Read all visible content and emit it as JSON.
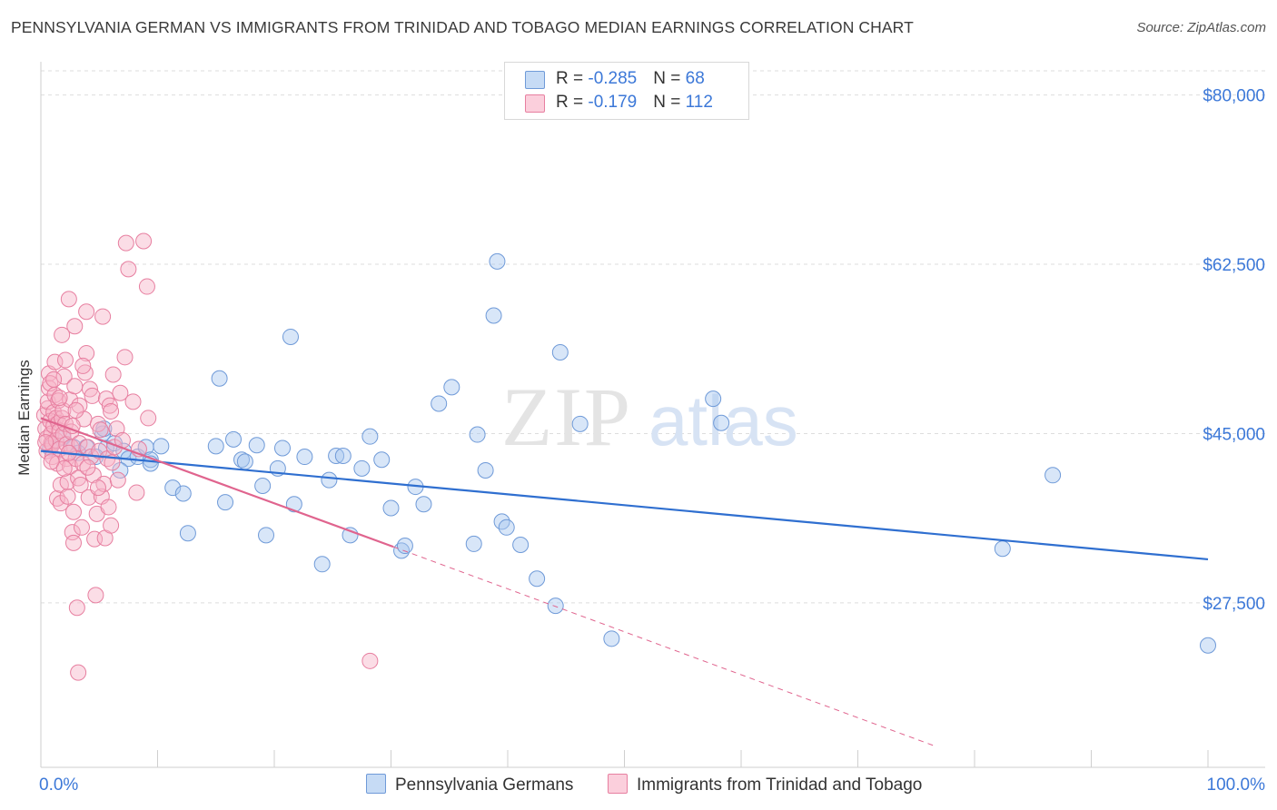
{
  "title": "PENNSYLVANIA GERMAN VS IMMIGRANTS FROM TRINIDAD AND TOBAGO MEDIAN EARNINGS CORRELATION CHART",
  "source": "Source: ZipAtlas.com",
  "watermark": {
    "zip": "ZIP",
    "atlas": "atlas"
  },
  "legend": {
    "rows": [
      {
        "r_label": "R = ",
        "r_value": "-0.285",
        "n_label": "N = ",
        "n_value": "68"
      },
      {
        "r_label": "R = ",
        "r_value": "-0.179",
        "n_label": "N = ",
        "n_value": "112"
      }
    ]
  },
  "colors": {
    "blue_fill": "#a9c8f0",
    "blue_stroke": "#6f9ad8",
    "blue_line": "#2f6fd0",
    "pink_fill": "#f6b4c8",
    "pink_stroke": "#e77fa0",
    "pink_line": "#e0648e",
    "axis_label": "#3c78d8",
    "grid": "#dddddd"
  },
  "chart_data": {
    "type": "scatter",
    "ylabel": "Median Earnings",
    "xlabel": "",
    "x_tick_labels": [
      "0.0%",
      "100.0%"
    ],
    "y_tick_labels": [
      "$80,000",
      "$62,500",
      "$45,000",
      "$27,500"
    ],
    "y_ticks": [
      80000,
      62500,
      45000,
      27500
    ],
    "xlim": [
      0,
      100
    ],
    "ylim": [
      10500,
      82500
    ],
    "grid": true,
    "legend_position": "top-center",
    "series": [
      {
        "name": "Pennsylvania Germans",
        "trend": {
          "x": [
            0,
            100
          ],
          "y": [
            43200,
            32000
          ],
          "solid_until": 100
        },
        "points": [
          [
            0.8,
            43.5
          ],
          [
            1.9,
            44.6
          ],
          [
            2.8,
            43.6
          ],
          [
            3.9,
            43.6
          ],
          [
            5.3,
            45.0
          ],
          [
            5.6,
            43.5
          ],
          [
            6.3,
            44.0
          ],
          [
            7.1,
            43.2
          ],
          [
            7.5,
            42.4
          ],
          [
            8.3,
            42.6
          ],
          [
            9.0,
            43.6
          ],
          [
            9.4,
            42.3
          ],
          [
            10.3,
            43.7
          ],
          [
            11.3,
            39.4
          ],
          [
            12.2,
            38.8
          ],
          [
            12.6,
            34.7
          ],
          [
            15.0,
            43.7
          ],
          [
            15.3,
            50.7
          ],
          [
            15.8,
            37.9
          ],
          [
            16.5,
            44.4
          ],
          [
            17.2,
            42.3
          ],
          [
            17.5,
            42.1
          ],
          [
            18.5,
            43.8
          ],
          [
            19.0,
            39.6
          ],
          [
            19.3,
            34.5
          ],
          [
            20.3,
            41.4
          ],
          [
            20.7,
            43.5
          ],
          [
            21.4,
            55.0
          ],
          [
            21.7,
            37.7
          ],
          [
            22.6,
            42.6
          ],
          [
            24.1,
            31.5
          ],
          [
            24.7,
            40.2
          ],
          [
            25.3,
            42.7
          ],
          [
            25.9,
            42.7
          ],
          [
            26.5,
            34.5
          ],
          [
            27.5,
            41.4
          ],
          [
            28.2,
            44.7
          ],
          [
            29.2,
            42.3
          ],
          [
            30.0,
            37.3
          ],
          [
            30.9,
            32.9
          ],
          [
            31.2,
            33.4
          ],
          [
            32.1,
            39.5
          ],
          [
            32.8,
            37.7
          ],
          [
            34.1,
            48.1
          ],
          [
            35.2,
            49.8
          ],
          [
            37.1,
            33.6
          ],
          [
            37.4,
            44.9
          ],
          [
            38.1,
            41.2
          ],
          [
            38.8,
            57.2
          ],
          [
            39.1,
            62.8
          ],
          [
            39.5,
            35.9
          ],
          [
            39.9,
            35.3
          ],
          [
            41.1,
            33.5
          ],
          [
            42.5,
            30.0
          ],
          [
            44.1,
            27.2
          ],
          [
            44.5,
            53.4
          ],
          [
            46.2,
            46.0
          ],
          [
            48.9,
            23.8
          ],
          [
            57.6,
            48.6
          ],
          [
            58.3,
            46.1
          ],
          [
            82.4,
            33.1
          ],
          [
            86.7,
            40.7
          ],
          [
            100.0,
            23.1
          ],
          [
            6.8,
            41.2
          ],
          [
            5.4,
            45.5
          ],
          [
            4.7,
            42.6
          ],
          [
            9.4,
            41.9
          ],
          [
            3.2,
            43.0
          ]
        ]
      },
      {
        "name": "Immigrants from Trinidad and Tobago",
        "trend": {
          "x": [
            0,
            30.2,
            76.6
          ],
          "y": [
            46600,
            33300,
            12700
          ],
          "solid_until": 30.2
        },
        "points": [
          [
            0.3,
            46.9
          ],
          [
            0.4,
            45.5
          ],
          [
            0.5,
            44.5
          ],
          [
            0.5,
            43.2
          ],
          [
            0.6,
            47.6
          ],
          [
            0.6,
            48.3
          ],
          [
            0.7,
            51.2
          ],
          [
            0.7,
            49.7
          ],
          [
            0.8,
            50.2
          ],
          [
            0.8,
            46.3
          ],
          [
            0.9,
            45.0
          ],
          [
            0.9,
            44.0
          ],
          [
            1.0,
            42.6
          ],
          [
            1.0,
            43.9
          ],
          [
            1.1,
            45.8
          ],
          [
            1.1,
            47.2
          ],
          [
            1.2,
            49.0
          ],
          [
            1.2,
            52.4
          ],
          [
            1.3,
            44.3
          ],
          [
            1.3,
            46.6
          ],
          [
            1.4,
            41.9
          ],
          [
            1.4,
            38.3
          ],
          [
            1.5,
            46.1
          ],
          [
            1.5,
            48.4
          ],
          [
            1.6,
            43.4
          ],
          [
            1.6,
            45.3
          ],
          [
            1.7,
            39.7
          ],
          [
            1.7,
            37.8
          ],
          [
            1.8,
            55.2
          ],
          [
            1.8,
            46.6
          ],
          [
            1.9,
            47.4
          ],
          [
            1.9,
            44.9
          ],
          [
            2.0,
            50.9
          ],
          [
            2.1,
            52.6
          ],
          [
            2.1,
            46.0
          ],
          [
            2.2,
            42.4
          ],
          [
            2.2,
            43.9
          ],
          [
            2.3,
            38.5
          ],
          [
            2.3,
            40.0
          ],
          [
            2.4,
            58.9
          ],
          [
            2.5,
            48.5
          ],
          [
            2.5,
            41.6
          ],
          [
            2.6,
            45.2
          ],
          [
            2.6,
            43.6
          ],
          [
            2.7,
            34.8
          ],
          [
            2.8,
            33.7
          ],
          [
            2.8,
            36.9
          ],
          [
            2.9,
            56.1
          ],
          [
            2.9,
            49.9
          ],
          [
            3.0,
            42.4
          ],
          [
            3.1,
            27.0
          ],
          [
            3.2,
            20.3
          ],
          [
            3.2,
            40.4
          ],
          [
            3.3,
            47.9
          ],
          [
            3.3,
            44.0
          ],
          [
            3.4,
            39.7
          ],
          [
            3.5,
            35.3
          ],
          [
            3.6,
            41.9
          ],
          [
            3.7,
            46.5
          ],
          [
            3.8,
            51.3
          ],
          [
            3.9,
            53.3
          ],
          [
            3.9,
            57.6
          ],
          [
            4.0,
            43.6
          ],
          [
            4.1,
            38.4
          ],
          [
            4.2,
            49.6
          ],
          [
            4.3,
            42.6
          ],
          [
            4.4,
            48.9
          ],
          [
            4.5,
            40.7
          ],
          [
            4.6,
            34.1
          ],
          [
            4.7,
            28.3
          ],
          [
            4.8,
            36.7
          ],
          [
            4.9,
            46.0
          ],
          [
            5.0,
            43.2
          ],
          [
            5.1,
            45.4
          ],
          [
            5.2,
            38.5
          ],
          [
            5.3,
            57.1
          ],
          [
            5.4,
            39.8
          ],
          [
            5.5,
            34.2
          ],
          [
            5.6,
            48.6
          ],
          [
            5.7,
            42.4
          ],
          [
            5.8,
            37.4
          ],
          [
            5.9,
            47.9
          ],
          [
            6.0,
            35.5
          ],
          [
            6.1,
            42.0
          ],
          [
            6.2,
            51.1
          ],
          [
            6.3,
            43.6
          ],
          [
            6.5,
            45.5
          ],
          [
            6.6,
            40.2
          ],
          [
            6.8,
            49.2
          ],
          [
            7.0,
            44.3
          ],
          [
            7.2,
            52.9
          ],
          [
            7.3,
            64.7
          ],
          [
            7.5,
            62.0
          ],
          [
            7.9,
            48.3
          ],
          [
            8.2,
            38.9
          ],
          [
            8.4,
            43.4
          ],
          [
            8.8,
            64.9
          ],
          [
            9.1,
            60.2
          ],
          [
            9.2,
            46.6
          ],
          [
            28.2,
            21.5
          ],
          [
            0.4,
            44.1
          ],
          [
            0.9,
            42.1
          ],
          [
            1.6,
            48.7
          ],
          [
            2.4,
            43.0
          ],
          [
            3.0,
            47.4
          ],
          [
            4.0,
            41.5
          ],
          [
            4.9,
            39.4
          ],
          [
            6.0,
            47.3
          ],
          [
            1.1,
            50.6
          ],
          [
            2.0,
            41.4
          ],
          [
            2.7,
            45.8
          ],
          [
            3.6,
            52.0
          ]
        ]
      }
    ]
  },
  "bottom_legend": [
    "Pennsylvania Germans",
    "Immigrants from Trinidad and Tobago"
  ]
}
